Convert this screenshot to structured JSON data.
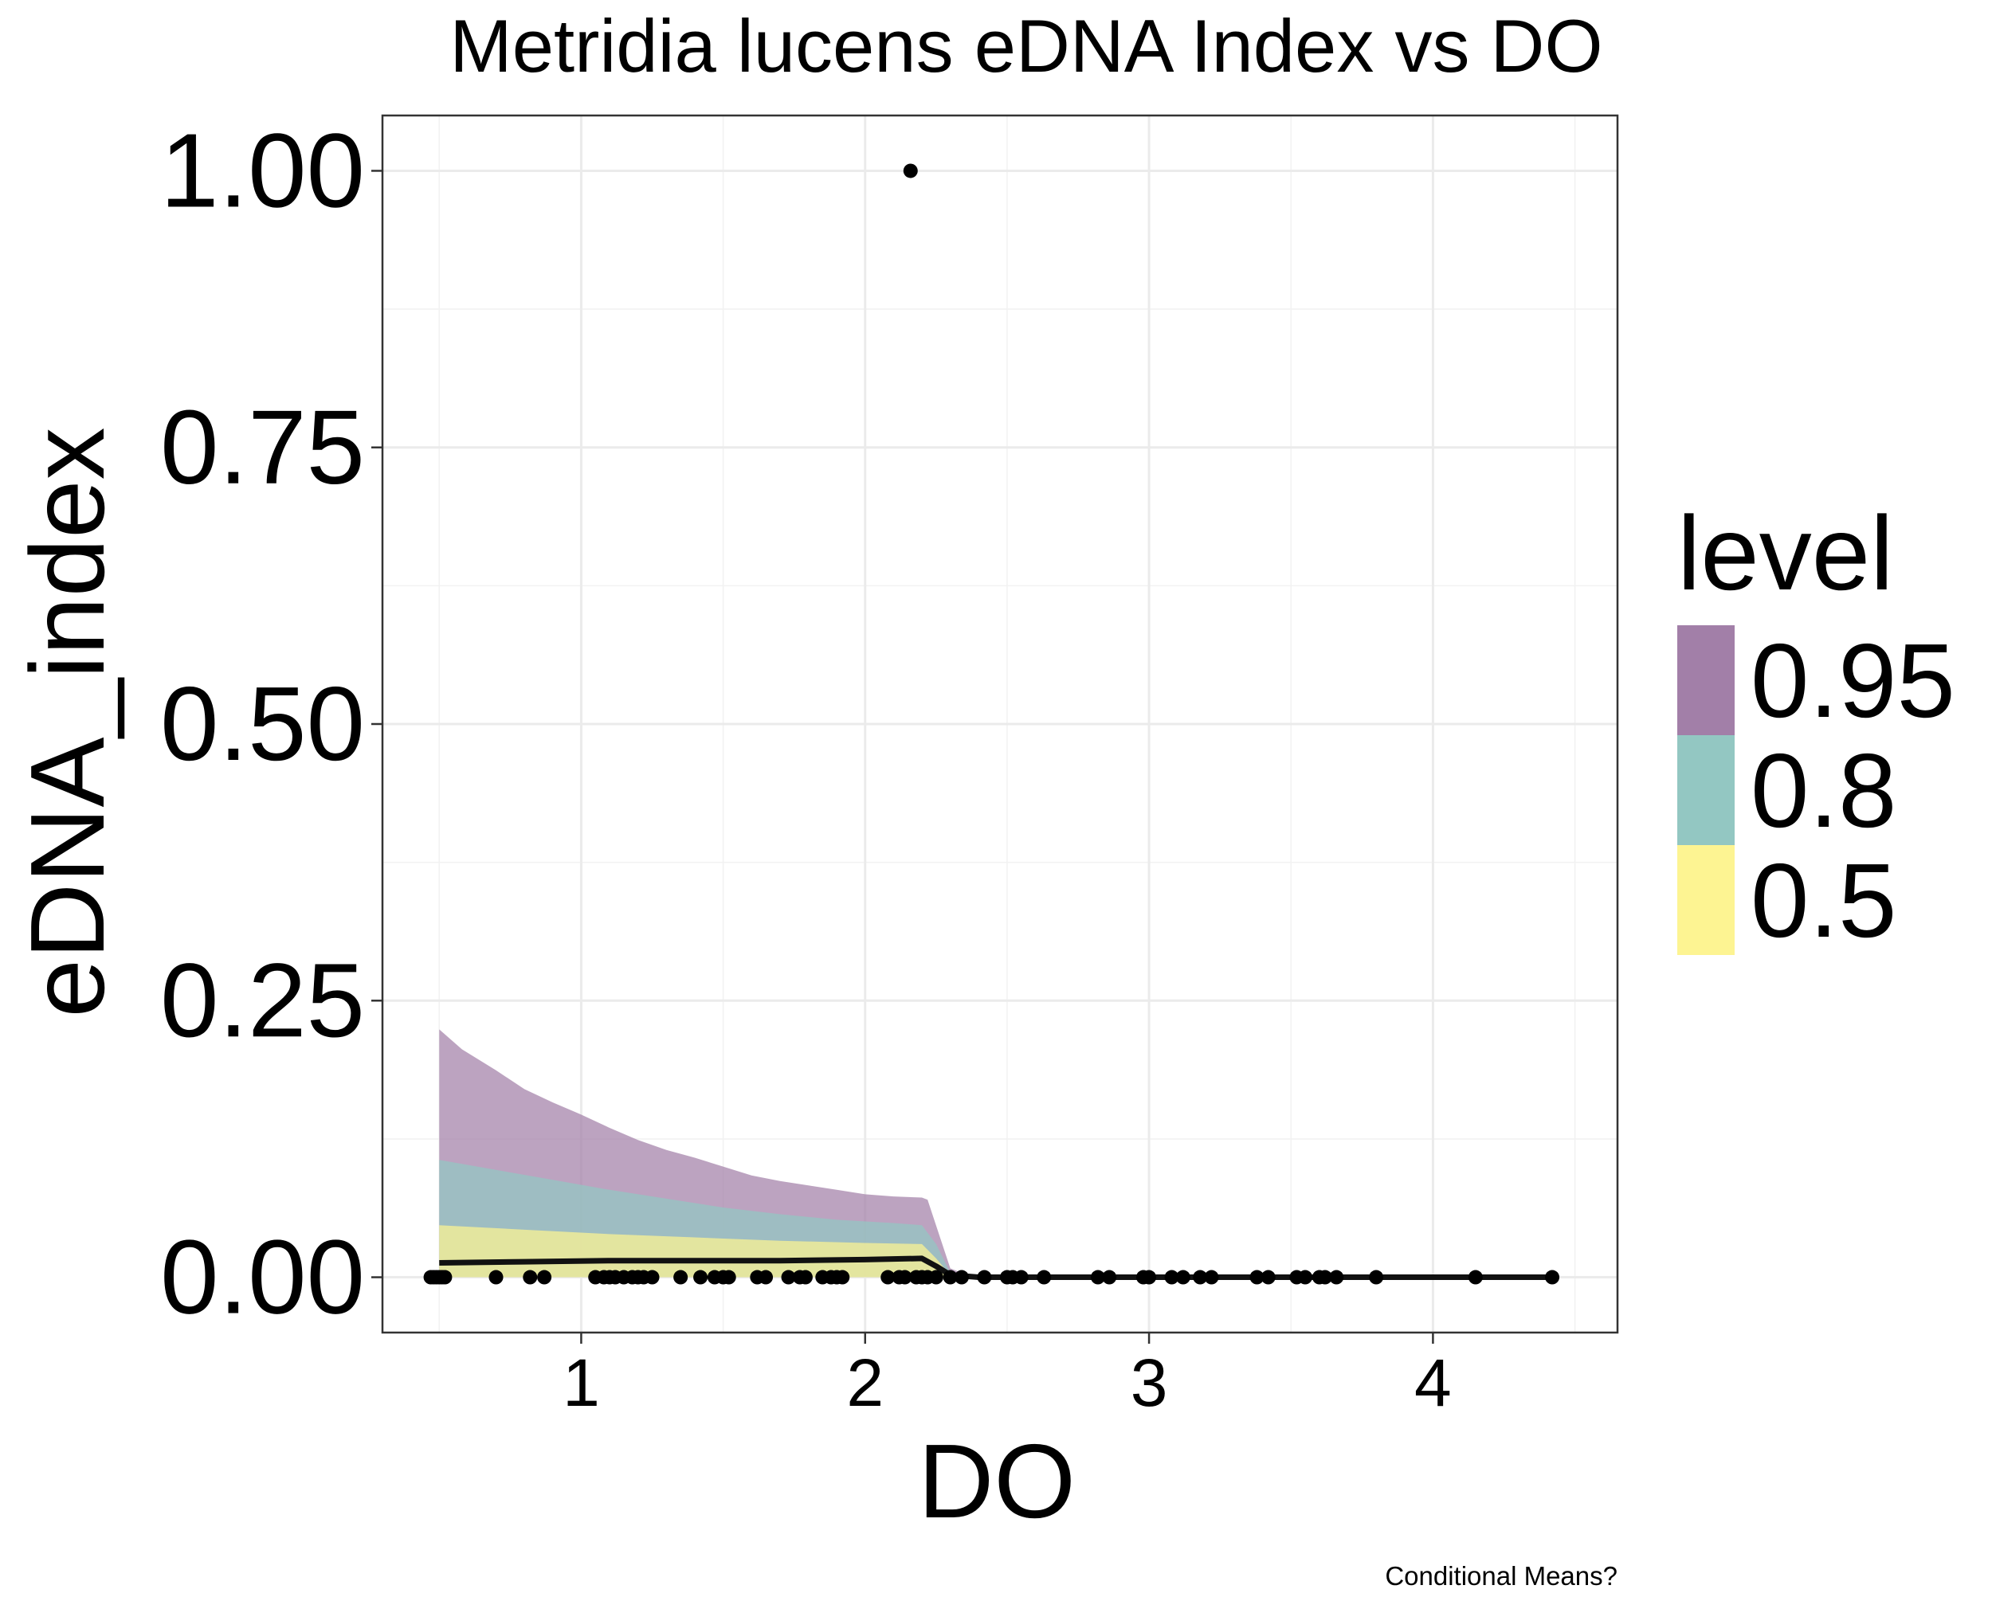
{
  "chart_data": {
    "type": "line",
    "title": "Metridia lucens eDNA Index vs DO",
    "xlabel": "DO",
    "ylabel": "eDNA_index",
    "caption": "Conditional Means?",
    "xlim": [
      0.3,
      4.65
    ],
    "ylim": [
      -0.05,
      1.05
    ],
    "x_ticks": [
      1,
      2,
      3,
      4
    ],
    "x_tick_labels": [
      "1",
      "2",
      "3",
      "4"
    ],
    "y_ticks": [
      0,
      0.25,
      0.5,
      0.75,
      1
    ],
    "y_tick_labels": [
      "0.00",
      "0.25",
      "0.50",
      "0.75",
      "1.00"
    ],
    "grid": true,
    "legend": {
      "title": "level",
      "position": "right",
      "entries": [
        {
          "label": "0.95",
          "color": "#a27fa8"
        },
        {
          "label": "0.8",
          "color": "#93c7c2"
        },
        {
          "label": "0.5",
          "color": "#fdf492"
        }
      ]
    },
    "series": [
      {
        "name": "0.95",
        "color": "#a27fa8",
        "points": [
          {
            "x": 0.5,
            "lower": 0.0,
            "upper": 0.224
          },
          {
            "x": 0.58,
            "lower": 0.0,
            "upper": 0.206
          },
          {
            "x": 0.7,
            "lower": 0.0,
            "upper": 0.187
          },
          {
            "x": 0.8,
            "lower": 0.0,
            "upper": 0.17
          },
          {
            "x": 0.9,
            "lower": 0.0,
            "upper": 0.158
          },
          {
            "x": 1.0,
            "lower": 0.0,
            "upper": 0.147
          },
          {
            "x": 1.1,
            "lower": 0.0,
            "upper": 0.135
          },
          {
            "x": 1.2,
            "lower": 0.0,
            "upper": 0.124
          },
          {
            "x": 1.3,
            "lower": 0.0,
            "upper": 0.115
          },
          {
            "x": 1.4,
            "lower": 0.0,
            "upper": 0.108
          },
          {
            "x": 1.5,
            "lower": 0.0,
            "upper": 0.1
          },
          {
            "x": 1.6,
            "lower": 0.0,
            "upper": 0.092
          },
          {
            "x": 1.7,
            "lower": 0.0,
            "upper": 0.087
          },
          {
            "x": 1.8,
            "lower": 0.0,
            "upper": 0.083
          },
          {
            "x": 1.9,
            "lower": 0.0,
            "upper": 0.079
          },
          {
            "x": 2.0,
            "lower": 0.0,
            "upper": 0.075
          },
          {
            "x": 2.1,
            "lower": 0.0,
            "upper": 0.073
          },
          {
            "x": 2.2,
            "lower": 0.0,
            "upper": 0.072
          },
          {
            "x": 2.22,
            "lower": 0.0,
            "upper": 0.07
          },
          {
            "x": 2.3,
            "lower": 0.0,
            "upper": 0.008
          },
          {
            "x": 2.35,
            "lower": 0.0,
            "upper": 0.003
          },
          {
            "x": 2.45,
            "lower": 0.0,
            "upper": 0.0
          }
        ]
      },
      {
        "name": "0.8",
        "color": "#93c7c2",
        "points": [
          {
            "x": 0.5,
            "lower": 0.0,
            "upper": 0.106
          },
          {
            "x": 0.7,
            "lower": 0.0,
            "upper": 0.097
          },
          {
            "x": 0.9,
            "lower": 0.0,
            "upper": 0.088
          },
          {
            "x": 1.1,
            "lower": 0.0,
            "upper": 0.079
          },
          {
            "x": 1.3,
            "lower": 0.0,
            "upper": 0.071
          },
          {
            "x": 1.5,
            "lower": 0.0,
            "upper": 0.063
          },
          {
            "x": 1.7,
            "lower": 0.0,
            "upper": 0.057
          },
          {
            "x": 1.9,
            "lower": 0.0,
            "upper": 0.052
          },
          {
            "x": 2.1,
            "lower": 0.0,
            "upper": 0.049
          },
          {
            "x": 2.2,
            "lower": 0.0,
            "upper": 0.047
          },
          {
            "x": 2.25,
            "lower": 0.0,
            "upper": 0.03
          },
          {
            "x": 2.3,
            "lower": 0.0,
            "upper": 0.004
          },
          {
            "x": 2.35,
            "lower": 0.0,
            "upper": 0.0
          }
        ]
      },
      {
        "name": "0.5",
        "color": "#fdf492",
        "points": [
          {
            "x": 0.5,
            "lower": 0.0,
            "upper": 0.047
          },
          {
            "x": 0.8,
            "lower": 0.0,
            "upper": 0.043
          },
          {
            "x": 1.1,
            "lower": 0.0,
            "upper": 0.039
          },
          {
            "x": 1.4,
            "lower": 0.0,
            "upper": 0.036
          },
          {
            "x": 1.7,
            "lower": 0.0,
            "upper": 0.033
          },
          {
            "x": 2.0,
            "lower": 0.0,
            "upper": 0.031
          },
          {
            "x": 2.2,
            "lower": 0.0,
            "upper": 0.03
          },
          {
            "x": 2.25,
            "lower": 0.0,
            "upper": 0.017
          },
          {
            "x": 2.3,
            "lower": 0.0,
            "upper": 0.002
          },
          {
            "x": 2.35,
            "lower": 0.0,
            "upper": 0.0
          }
        ]
      }
    ],
    "conditional_mean": {
      "color": "#111111",
      "x": [
        0.5,
        0.8,
        1.1,
        1.4,
        1.7,
        2.0,
        2.2,
        2.25,
        2.3,
        2.4,
        4.4
      ],
      "y": [
        0.013,
        0.014,
        0.015,
        0.015,
        0.015,
        0.016,
        0.017,
        0.01,
        0.002,
        0.0,
        0.0
      ]
    },
    "points": {
      "color": "#000000",
      "x": [
        0.47,
        0.48,
        0.49,
        0.5,
        0.51,
        0.52,
        0.7,
        0.82,
        0.87,
        1.05,
        1.08,
        1.1,
        1.12,
        1.15,
        1.18,
        1.2,
        1.22,
        1.25,
        1.35,
        1.42,
        1.47,
        1.5,
        1.52,
        1.62,
        1.65,
        1.73,
        1.77,
        1.79,
        1.85,
        1.88,
        1.9,
        1.92,
        2.08,
        2.12,
        2.14,
        2.16,
        2.18,
        2.2,
        2.22,
        2.25,
        2.3,
        2.34,
        2.42,
        2.5,
        2.52,
        2.55,
        2.63,
        2.82,
        2.86,
        2.98,
        3.0,
        3.08,
        3.12,
        3.18,
        3.22,
        3.38,
        3.42,
        3.52,
        3.55,
        3.6,
        3.62,
        3.66,
        3.8,
        4.15,
        4.42
      ],
      "y": [
        0,
        0,
        0,
        0,
        0,
        0,
        0,
        0,
        0,
        0,
        0,
        0,
        0,
        0,
        0,
        0,
        0,
        0,
        0,
        0,
        0,
        0,
        0,
        0,
        0,
        0,
        0,
        0,
        0,
        0,
        0,
        0,
        0,
        0,
        0,
        1.0,
        0,
        0,
        0,
        0,
        0,
        0,
        0,
        0,
        0,
        0,
        0,
        0,
        0,
        0,
        0,
        0,
        0,
        0,
        0,
        0,
        0,
        0,
        0,
        0,
        0,
        0,
        0,
        0,
        0
      ]
    }
  }
}
